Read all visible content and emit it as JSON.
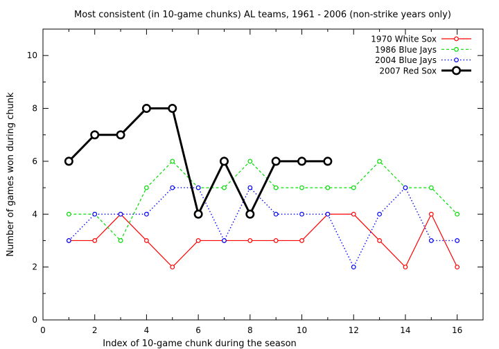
{
  "chart_data": {
    "type": "line",
    "title": "Most consistent (in 10-game chunks) AL teams, 1961 - 2006 (non-strike years only)",
    "xlabel": "Index of 10-game chunk during the season",
    "ylabel": "Number of games won during chunk",
    "xlim": [
      0,
      17
    ],
    "ylim": [
      0,
      11
    ],
    "xticks": [
      0,
      2,
      4,
      6,
      8,
      10,
      12,
      14,
      16
    ],
    "yticks": [
      0,
      2,
      4,
      6,
      8,
      10
    ],
    "grid": false,
    "legend_position": "top-right",
    "series": [
      {
        "name": "1970 White Sox",
        "color": "#ff0000",
        "style": "solid",
        "marker": "small-circle",
        "x": [
          1,
          2,
          3,
          4,
          5,
          6,
          7,
          8,
          9,
          10,
          11,
          12,
          13,
          14,
          15,
          16
        ],
        "values": [
          3,
          3,
          4,
          3,
          2,
          3,
          3,
          3,
          3,
          3,
          4,
          4,
          3,
          2,
          4,
          2
        ]
      },
      {
        "name": "1986 Blue Jays",
        "color": "#00dd00",
        "style": "dashed",
        "marker": "small-circle",
        "x": [
          1,
          2,
          3,
          4,
          5,
          6,
          7,
          8,
          9,
          10,
          11,
          12,
          13,
          14,
          15,
          16
        ],
        "values": [
          4,
          4,
          3,
          5,
          6,
          5,
          5,
          6,
          5,
          5,
          5,
          5,
          6,
          5,
          5,
          4
        ]
      },
      {
        "name": "2004 Blue Jays",
        "color": "#0000ff",
        "style": "dotted",
        "marker": "small-circle",
        "x": [
          1,
          2,
          3,
          4,
          5,
          6,
          7,
          8,
          9,
          10,
          11,
          12,
          13,
          14,
          15,
          16
        ],
        "values": [
          3,
          4,
          4,
          4,
          5,
          5,
          3,
          5,
          4,
          4,
          4,
          2,
          4,
          5,
          3,
          3
        ]
      },
      {
        "name": "2007 Red Sox",
        "color": "#000000",
        "style": "solid-thick",
        "marker": "large-circle",
        "x": [
          1,
          2,
          3,
          4,
          5,
          6,
          7,
          8,
          9,
          10,
          11
        ],
        "values": [
          6,
          7,
          7,
          8,
          8,
          4,
          6,
          4,
          6,
          6,
          6
        ]
      }
    ]
  }
}
